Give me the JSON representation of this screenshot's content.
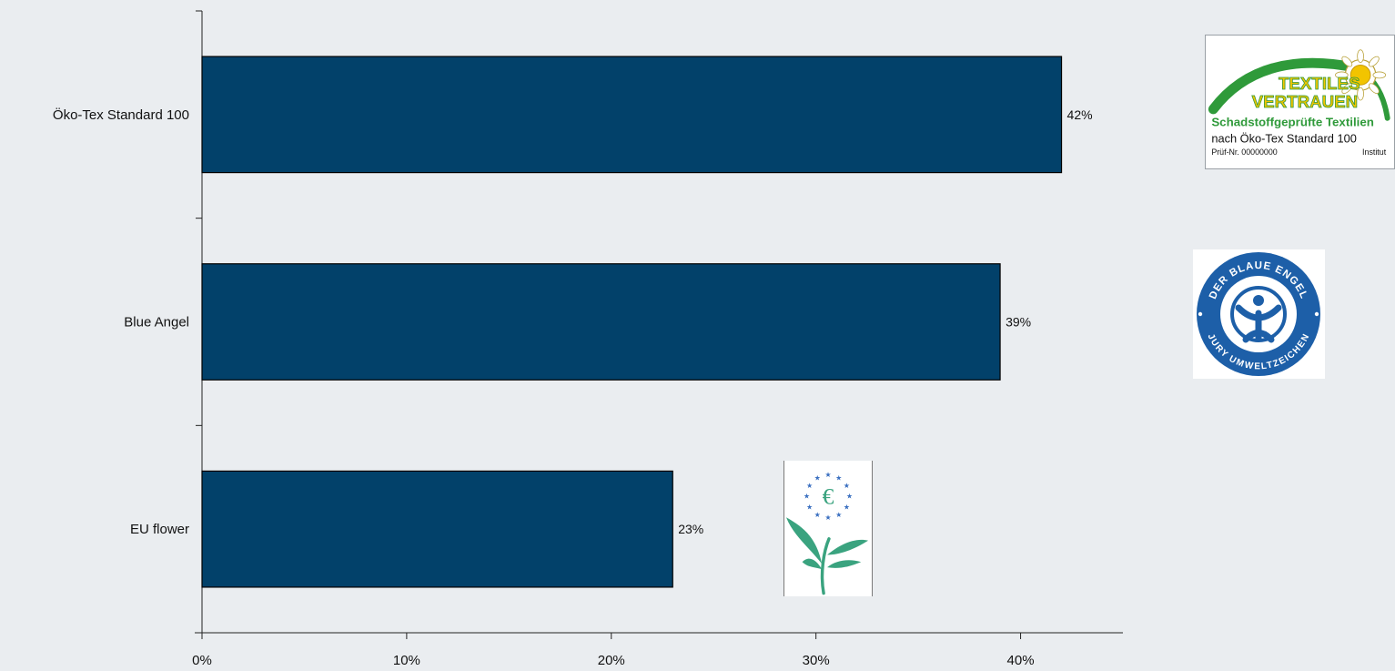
{
  "chart_data": {
    "type": "bar",
    "orientation": "horizontal",
    "categories": [
      "Öko-Tex Standard 100",
      "Blue Angel",
      "EU flower"
    ],
    "values": [
      42,
      39,
      23
    ],
    "value_labels": [
      "42%",
      "39%",
      "23%"
    ],
    "x_ticks": [
      "0%",
      "10%",
      "20%",
      "30%",
      "40%"
    ],
    "xlim": [
      0,
      45
    ],
    "grid": false,
    "bar_color": "#02416a",
    "title": "",
    "xlabel": "",
    "ylabel": ""
  },
  "colors": {
    "background": "#eaedf0",
    "bar": "#02416a",
    "axis": "#222222",
    "oekotex_green": "#2f9a3a",
    "oekotex_yellow": "#f2c400",
    "blue_angel": "#1d5fa8",
    "eu_star": "#3a6fc0",
    "eu_leaf": "#3aa37f"
  },
  "logos": {
    "oekotex": {
      "line1": "TEXTILES",
      "line2": "VERTRAUEN",
      "line3": "Schadstoffgeprüfte Textilien",
      "line4": "nach Öko-Tex Standard 100",
      "line5_left": "Prüf-Nr. 00000000",
      "line5_right": "Institut"
    },
    "blaue_engel": {
      "top_text": "DER BLAUE ENGEL",
      "bottom_text": "JURY UMWELTZEICHEN"
    },
    "eu_flower": {
      "center_glyph": "€"
    }
  }
}
